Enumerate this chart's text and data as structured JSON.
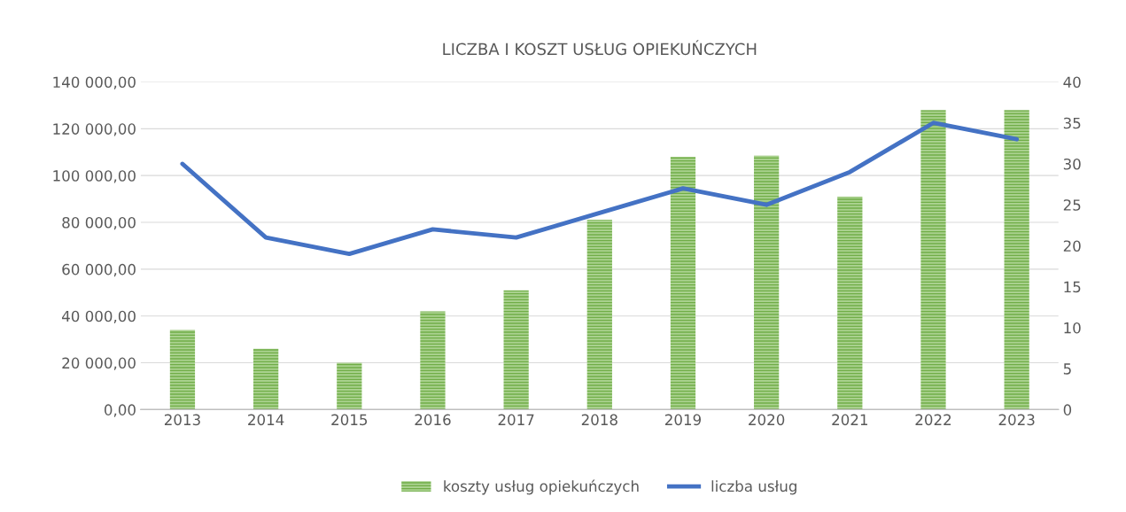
{
  "chart_data": {
    "type": "bar",
    "title": "LICZBA I KOSZT USŁUG OPIEKUŃCZYCH",
    "categories": [
      "2013",
      "2014",
      "2015",
      "2016",
      "2017",
      "2018",
      "2019",
      "2020",
      "2021",
      "2022",
      "2023"
    ],
    "series": [
      {
        "name": "koszty usług opiekuńczych",
        "color": "#70ad47",
        "values": [
          34000,
          26000,
          20000,
          42000,
          51000,
          81000,
          108000,
          108500,
          91000,
          128000,
          128000
        ]
      },
      {
        "name": "liczba usług",
        "type": "line",
        "axis": "y2",
        "color": "#4472c4",
        "values": [
          30,
          21,
          19,
          22,
          21,
          24,
          27,
          25,
          29,
          35,
          33
        ]
      }
    ],
    "ylim": [
      0,
      140000
    ],
    "yticks": [
      {
        "value": 0,
        "label": "0,00"
      },
      {
        "value": 20000,
        "label": "20 000,00"
      },
      {
        "value": 40000,
        "label": "40 000,00"
      },
      {
        "value": 60000,
        "label": "60 000,00"
      },
      {
        "value": 80000,
        "label": "80 000,00"
      },
      {
        "value": 100000,
        "label": "100 000,00"
      },
      {
        "value": 120000,
        "label": "120 000,00"
      },
      {
        "value": 140000,
        "label": "140 000,00"
      }
    ],
    "y2lim": [
      0,
      40
    ],
    "y2ticks": [
      0,
      5,
      10,
      15,
      20,
      25,
      30,
      35,
      40
    ],
    "grid": "y",
    "legend": "bottom",
    "marker": "none",
    "line_style": "solid"
  }
}
